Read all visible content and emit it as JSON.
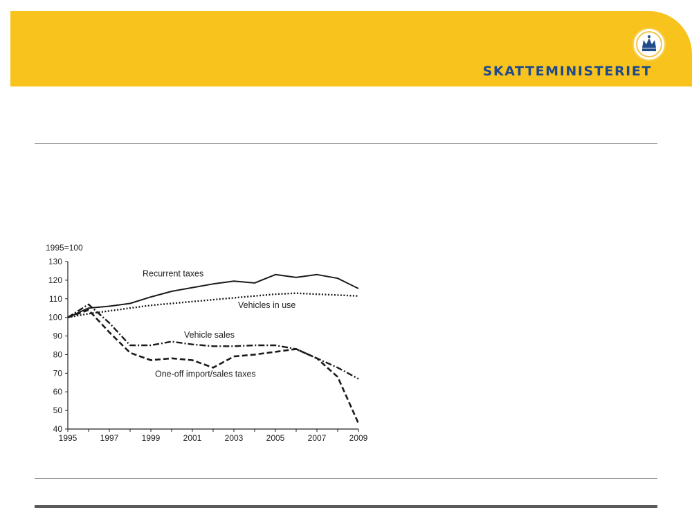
{
  "brand": {
    "name": "SKATTEMINISTERIET",
    "logo": "crown-crest-icon",
    "colors": {
      "band": "#f9c31d",
      "text": "#1f4a8c"
    }
  },
  "chart_data": {
    "type": "line",
    "title": "",
    "ylabel": "1995=100",
    "xlabel": "",
    "ylim": [
      40,
      130
    ],
    "xlim": [
      1995,
      2009
    ],
    "x_ticks": [
      1995,
      1997,
      1999,
      2001,
      2003,
      2005,
      2007,
      2009
    ],
    "y_ticks": [
      40,
      50,
      60,
      70,
      80,
      90,
      100,
      110,
      120,
      130
    ],
    "grid": false,
    "legend": "inline labels",
    "x": [
      1995,
      1996,
      1997,
      1998,
      1999,
      2000,
      2001,
      2002,
      2003,
      2004,
      2005,
      2006,
      2007,
      2008,
      2009
    ],
    "series": [
      {
        "name": "Recurrent taxes",
        "style": "solid",
        "values": [
          100,
          105,
          106,
          107.5,
          111,
          114,
          116,
          118,
          119.5,
          118.5,
          123,
          121.5,
          123,
          121,
          115.5
        ]
      },
      {
        "name": "Vehicles in use",
        "style": "dotted",
        "values": [
          100,
          102,
          103.5,
          105,
          106.5,
          107.5,
          108.5,
          109.5,
          110.5,
          111.5,
          112.5,
          113,
          112.5,
          112,
          111.5
        ]
      },
      {
        "name": "Vehicle sales",
        "style": "dashdot",
        "values": [
          100,
          107,
          97,
          85,
          85,
          87,
          85.5,
          84.5,
          84.5,
          85,
          85,
          83,
          78,
          73,
          67
        ]
      },
      {
        "name": "One-off import/sales taxes",
        "style": "dashed",
        "values": [
          100,
          104,
          92,
          81,
          77,
          78,
          77,
          73,
          79,
          80,
          81.5,
          83,
          78,
          68,
          43
        ]
      }
    ]
  }
}
